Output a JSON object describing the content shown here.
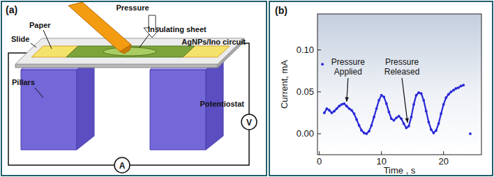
{
  "panels": {
    "a": "(a)",
    "b": "(b)"
  },
  "diagram": {
    "labels": {
      "pressure": "Pressure",
      "paper": "Paper",
      "slide": "Slide",
      "insulating_sheet": "Insulating sheet",
      "circuit": "AgNPs/Ino circuit",
      "pillars": "Pillars",
      "potentiostat": "Potentiostat"
    },
    "meters": {
      "ammeter": "A",
      "voltmeter": "V"
    }
  },
  "chart_data": {
    "type": "line",
    "x_label": "Time , s",
    "y_label": "Current, mA",
    "xlim": [
      -0.3,
      26.1
    ],
    "ylim": [
      -0.025,
      0.143
    ],
    "xticks": [
      0,
      10,
      20
    ],
    "yticks": [
      {
        "value": 0,
        "label": "0.00"
      },
      {
        "value": 0.05,
        "label": "0.05"
      },
      {
        "value": 0.1,
        "label": "0.10"
      }
    ],
    "grid": false,
    "series": [
      {
        "type": "line",
        "marker": "circle",
        "color": "#2828d8",
        "x": [
          0.8,
          1.2,
          1.6,
          2.0,
          2.4,
          2.8,
          3.2,
          3.6,
          4.0,
          4.4,
          4.8,
          5.2,
          5.6,
          6.0,
          6.4,
          6.8,
          7.2,
          7.6,
          8.0,
          8.4,
          8.8,
          9.2,
          9.6,
          10.0,
          10.4,
          10.8,
          11.2,
          11.6,
          12.0,
          12.4,
          12.8,
          13.2,
          13.6,
          14.0,
          14.4,
          14.8,
          15.2,
          15.6,
          16.0,
          16.4,
          16.8,
          17.2,
          17.6,
          18.0,
          18.4,
          18.8,
          19.2,
          19.6,
          20.0,
          20.4,
          20.8,
          21.2,
          21.6,
          22.0,
          22.4,
          22.8,
          23.2
        ],
        "values": [
          0.025,
          0.03,
          0.028,
          0.025,
          0.027,
          0.03,
          0.033,
          0.035,
          0.036,
          0.033,
          0.03,
          0.028,
          0.024,
          0.017,
          0.01,
          0.004,
          0.001,
          0.0,
          0.003,
          0.01,
          0.02,
          0.03,
          0.04,
          0.046,
          0.044,
          0.036,
          0.026,
          0.018,
          0.016,
          0.019,
          0.021,
          0.018,
          0.012,
          0.007,
          0.009,
          0.02,
          0.035,
          0.046,
          0.049,
          0.048,
          0.04,
          0.027,
          0.014,
          0.005,
          0.001,
          0.004,
          0.012,
          0.024,
          0.035,
          0.043,
          0.047,
          0.05,
          0.052,
          0.054,
          0.055,
          0.057,
          0.058
        ]
      },
      {
        "type": "scatter",
        "marker": "circle",
        "color": "#2828d8",
        "x": [
          0.5,
          24.3
        ],
        "values": [
          0.083,
          0.0
        ]
      }
    ],
    "annotations": [
      {
        "text": "Pressure Applied",
        "x": 4.4,
        "y": 0.034
      },
      {
        "text": "Pressure Released",
        "x": 14.2,
        "y": 0.009
      }
    ]
  }
}
